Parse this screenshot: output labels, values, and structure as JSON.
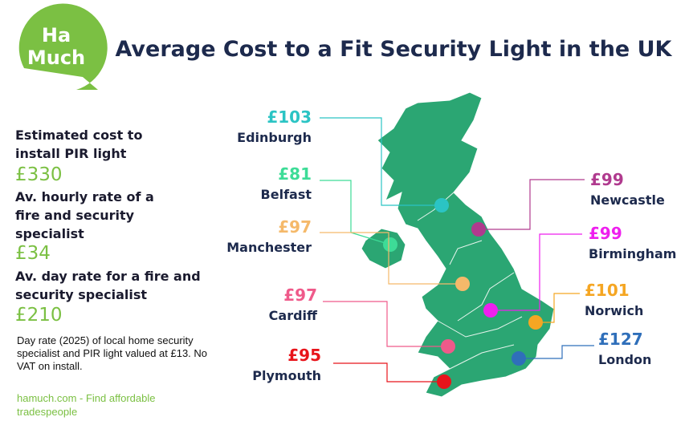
{
  "logo": {
    "line1": "Ha",
    "line2": "Much"
  },
  "title": "Average Cost to a Fit Security Light in the UK",
  "stats": [
    {
      "label": "Estimated cost to install PIR light",
      "value": "£330"
    },
    {
      "label": "Av. hourly rate of a fire and security specialist",
      "value": "£34"
    },
    {
      "label": "Av. day rate for a fire and security specialist",
      "value": "£210"
    }
  ],
  "note": "Day rate (2025) of local home security specialist  and PIR light valued at  £13. No VAT on install.",
  "footer": "hamuch.com - Find affordable tradespeople",
  "cities": [
    {
      "name": "Edinburgh",
      "price": "£103",
      "color": "#2bc4c4"
    },
    {
      "name": "Belfast",
      "price": "£81",
      "color": "#3ddc97"
    },
    {
      "name": "Manchester",
      "price": "£97",
      "color": "#f5b96a"
    },
    {
      "name": "Cardiff",
      "price": "£97",
      "color": "#ef5a8a"
    },
    {
      "name": "Plymouth",
      "price": "£95",
      "color": "#e8141b"
    },
    {
      "name": "Newcastle",
      "price": "£99",
      "color": "#b03a8e"
    },
    {
      "name": "Birmingham",
      "price": "£99",
      "color": "#ee1fee"
    },
    {
      "name": "Norwich",
      "price": "£101",
      "color": "#f5a623"
    },
    {
      "name": "London",
      "price": "£127",
      "color": "#2f6fba"
    }
  ]
}
